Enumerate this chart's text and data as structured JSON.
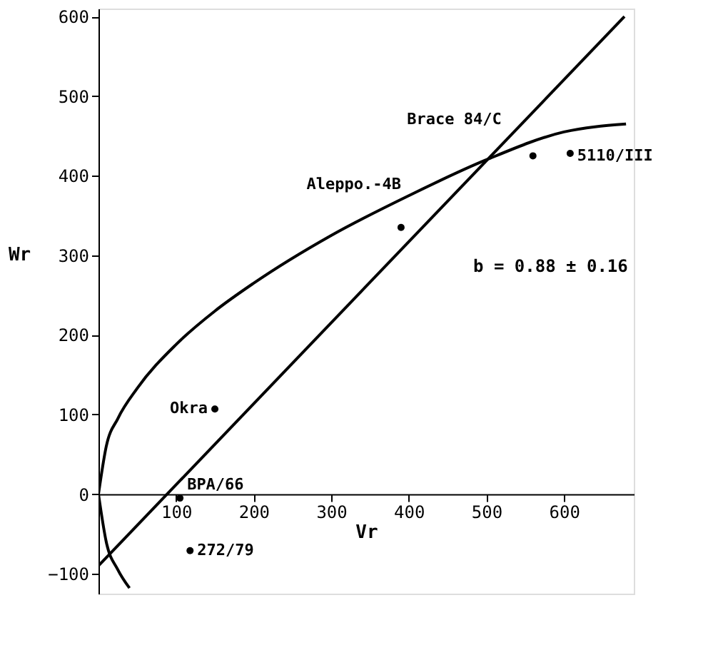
{
  "chart_data": {
    "type": "scatter",
    "xlabel": "Vr",
    "ylabel": "Wr",
    "xlim": [
      0,
      690
    ],
    "ylim": [
      -125,
      610
    ],
    "xticks": [
      100,
      200,
      300,
      400,
      500,
      600
    ],
    "yticks": [
      -100,
      0,
      100,
      200,
      300,
      400,
      500,
      600
    ],
    "grid": false,
    "marker": "circle",
    "series": [
      {
        "color": "#000000",
        "x": [
          150,
          118,
          105,
          390,
          560,
          608
        ],
        "values": [
          107,
          -71,
          -5,
          335,
          425,
          428
        ]
      },
      {
        "type": "line",
        "marker": "none",
        "color": "#000000",
        "x": [
          0,
          10,
          25,
          50,
          100,
          150,
          200,
          300,
          400,
          500,
          600,
          680
        ],
        "values": [
          0,
          60,
          95,
          133,
          188,
          230,
          265,
          325,
          375,
          420,
          455,
          465
        ]
      },
      {
        "type": "line",
        "marker": "none",
        "color": "#000000",
        "x": [
          0,
          10,
          25,
          40
        ],
        "values": [
          0,
          -60,
          -95,
          -118
        ]
      },
      {
        "type": "line",
        "marker": "none",
        "color": "#000000",
        "x": [
          0,
          678
        ],
        "values": [
          -90,
          600
        ]
      }
    ],
    "annotations": [
      {
        "text": "Okra",
        "x": 150,
        "y": 107
      },
      {
        "text": "272/79",
        "x": 118,
        "y": -71
      },
      {
        "text": "BPA/66",
        "x": 105,
        "y": -5
      },
      {
        "text": "Aleppo.-4B",
        "x": 390,
        "y": 335
      },
      {
        "text": "Brace 84/C",
        "x": 560,
        "y": 425
      },
      {
        "text": "5110/III",
        "x": 608,
        "y": 428
      },
      "b = 0.88 ± 0.16"
    ]
  }
}
